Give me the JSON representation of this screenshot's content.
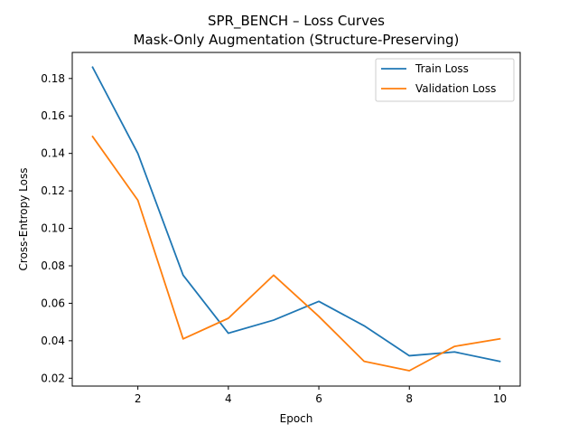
{
  "chart_data": {
    "type": "line",
    "title": "SPR_BENCH – Loss Curves",
    "subtitle": "Mask-Only Augmentation (Structure-Preserving)",
    "xlabel": "Epoch",
    "ylabel": "Cross-Entropy Loss",
    "x": [
      1,
      2,
      3,
      4,
      5,
      6,
      7,
      8,
      9,
      10
    ],
    "xlim": [
      0.55,
      10.45
    ],
    "ylim": [
      0.0158,
      0.1939
    ],
    "xticks": [
      2,
      4,
      6,
      8,
      10
    ],
    "yticks": [
      0.02,
      0.04,
      0.06,
      0.08,
      0.1,
      0.12,
      0.14,
      0.16,
      0.18
    ],
    "ytick_labels": [
      "0.02",
      "0.04",
      "0.06",
      "0.08",
      "0.10",
      "0.12",
      "0.14",
      "0.16",
      "0.18"
    ],
    "grid": false,
    "legend_position": "top-right",
    "series": [
      {
        "name": "Train Loss",
        "color": "#1f77b4",
        "values": [
          0.186,
          0.14,
          0.075,
          0.044,
          0.051,
          0.061,
          0.048,
          0.032,
          0.034,
          0.029
        ]
      },
      {
        "name": "Validation Loss",
        "color": "#ff7f0e",
        "values": [
          0.149,
          0.115,
          0.041,
          0.052,
          0.075,
          0.053,
          0.029,
          0.024,
          0.037,
          0.041
        ]
      }
    ]
  }
}
